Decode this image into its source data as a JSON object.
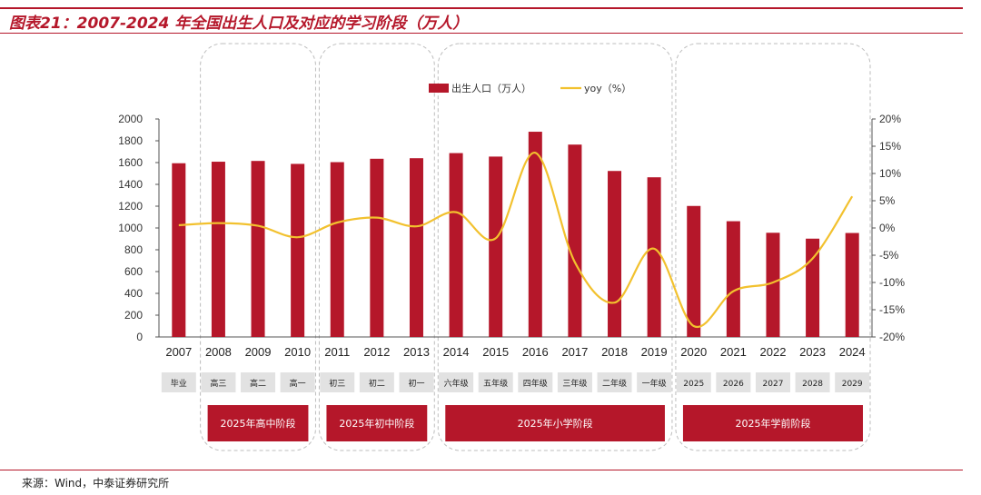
{
  "header": {
    "title": "图表21：2007-2024 年全国出生人口及对应的学习阶段（万人）"
  },
  "footer": {
    "source": "来源：Wind，中泰证券研究所"
  },
  "colors": {
    "bar": "#b5172a",
    "line": "#f2c12e",
    "accent": "#b5172a",
    "stage_bg": "#e2e2e2",
    "group_border": "#bdbdbd"
  },
  "chart_data": {
    "type": "bar",
    "categories": [
      "2007",
      "2008",
      "2009",
      "2010",
      "2011",
      "2012",
      "2013",
      "2014",
      "2015",
      "2016",
      "2017",
      "2018",
      "2019",
      "2020",
      "2021",
      "2022",
      "2023",
      "2024"
    ],
    "series": [
      {
        "name": "出生人口（万人）",
        "type": "bar",
        "axis": "left",
        "values": [
          1594,
          1608,
          1615,
          1588,
          1604,
          1635,
          1640,
          1687,
          1655,
          1883,
          1765,
          1523,
          1465,
          1202,
          1062,
          956,
          902,
          954
        ]
      },
      {
        "name": "yoy（%）",
        "type": "line",
        "axis": "right",
        "values": [
          0.5,
          0.9,
          0.4,
          -1.7,
          1.0,
          1.9,
          0.3,
          2.9,
          -1.9,
          13.8,
          -6.3,
          -13.7,
          -3.8,
          -18.0,
          -11.6,
          -10.0,
          -5.6,
          5.8
        ]
      }
    ],
    "y_left": {
      "ylim": [
        0,
        2000
      ],
      "ticks": [
        "0",
        "200",
        "400",
        "600",
        "800",
        "1000",
        "1200",
        "1400",
        "1600",
        "1800",
        "2000"
      ]
    },
    "y_right": {
      "ylim": [
        -20,
        20
      ],
      "ticks": [
        "-20%",
        "-15%",
        "-10%",
        "-5%",
        "0%",
        "5%",
        "10%",
        "15%",
        "20%"
      ]
    },
    "stage_labels": [
      "毕业",
      "高三",
      "高二",
      "高一",
      "初三",
      "初二",
      "初一",
      "六年级",
      "五年级",
      "四年级",
      "三年级",
      "二年级",
      "一年级",
      "2025",
      "2026",
      "2027",
      "2028",
      "2029"
    ],
    "phases": [
      {
        "label": "2025年高中阶段",
        "from": 1,
        "to": 3
      },
      {
        "label": "2025年初中阶段",
        "from": 4,
        "to": 6
      },
      {
        "label": "2025年小学阶段",
        "from": 7,
        "to": 12
      },
      {
        "label": "2025年学前阶段",
        "from": 13,
        "to": 17
      }
    ],
    "legend_position": "top-center",
    "grid": false
  }
}
